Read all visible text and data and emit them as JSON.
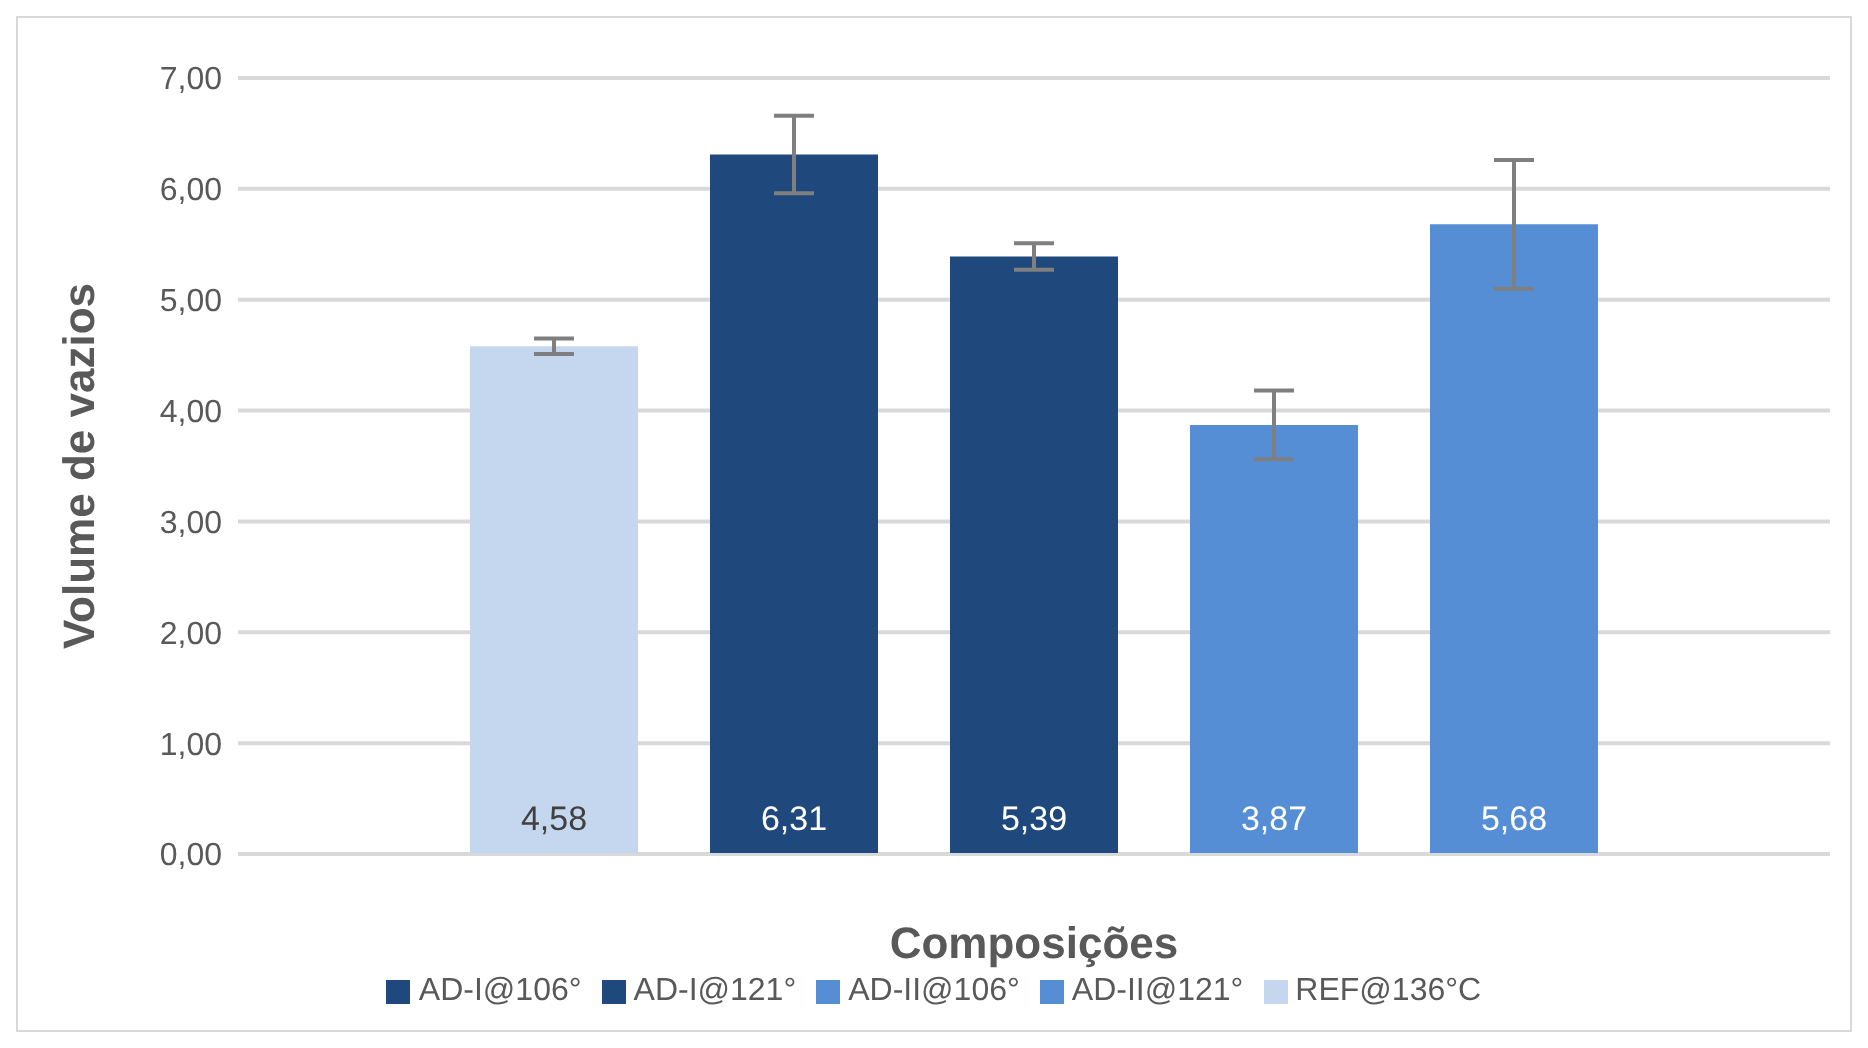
{
  "chart_data": {
    "type": "bar",
    "xlabel": "Composições",
    "ylabel": "Volume de vazios",
    "categories": [
      null
    ],
    "series": [
      {
        "name": "REF@136°C",
        "color": "#c5d7ee",
        "values": [
          4.58
        ],
        "errors": [
          0.07
        ],
        "value_labels": [
          "4,58"
        ]
      },
      {
        "name": "AD-I@121°",
        "color": "#1f497d",
        "values": [
          6.31
        ],
        "errors": [
          0.35
        ],
        "value_labels": [
          "6,31"
        ]
      },
      {
        "name": "AD-I@106°",
        "color": "#1f497d",
        "values": [
          5.39
        ],
        "errors": [
          0.12
        ],
        "value_labels": [
          "5,39"
        ]
      },
      {
        "name": "AD-II@121°",
        "color": "#558ed5",
        "values": [
          3.87
        ],
        "errors": [
          0.31
        ],
        "value_labels": [
          "3,87"
        ]
      },
      {
        "name": "AD-II@106°",
        "color": "#558ed5",
        "values": [
          5.68
        ],
        "errors": [
          0.58
        ],
        "value_labels": [
          "5,68"
        ]
      }
    ],
    "ylim": [
      0,
      7
    ],
    "yticks": [
      {
        "value": 0,
        "label": "0,00"
      },
      {
        "value": 1,
        "label": "1,00"
      },
      {
        "value": 2,
        "label": "2,00"
      },
      {
        "value": 3,
        "label": "3,00"
      },
      {
        "value": 4,
        "label": "4,00"
      },
      {
        "value": 5,
        "label": "5,00"
      },
      {
        "value": 6,
        "label": "6,00"
      },
      {
        "value": 7,
        "label": "7,00"
      }
    ],
    "grid": "y",
    "legend": "bottom"
  }
}
